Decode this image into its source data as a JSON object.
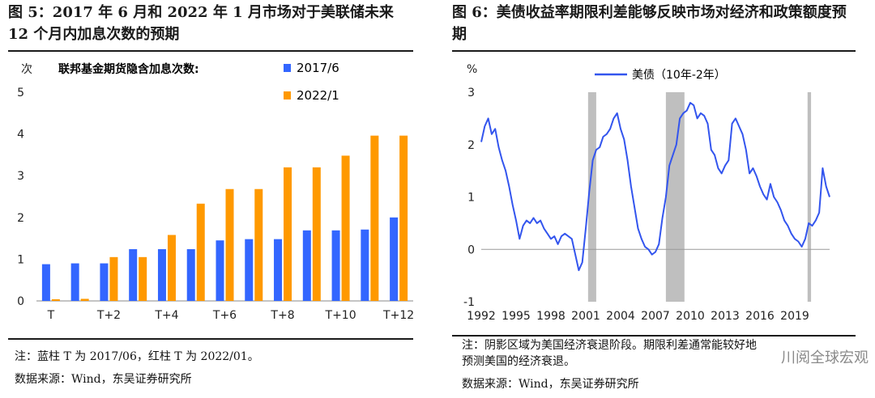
{
  "left": {
    "figure_title": "图 5：2017 年 6 月和 2022 年 1 月市场对于美联储未来 12 个月内加息次数的预期",
    "note": "注：蓝柱 T 为 2017/06，红柱 T 为 2022/01。",
    "source": "数据来源：Wind，东吴证券研究所"
  },
  "right": {
    "figure_title": "图 6：美债收益率期限利差能够反映市场对经济和政策额度预期",
    "note_line1": "注：阴影区域为美国经济衰退阶段。期限利差通常能较好地",
    "note_line2": "预测美国的经济衰退。",
    "source": "数据来源：Wind，东吴证券研究所",
    "watermark": "川阅全球宏观"
  },
  "colors": {
    "blue": "#3366ff",
    "orange": "#ff9900",
    "line_blue": "#3355ee",
    "shade": "#bfbfbf"
  },
  "chart_data": [
    {
      "type": "bar",
      "title": "联邦基金期货隐含加息次数:",
      "ylabel": "次",
      "ylim": [
        0,
        5
      ],
      "yticks": [
        0,
        1,
        2,
        3,
        4,
        5
      ],
      "legend_position": "top-right",
      "categories": [
        "T",
        "",
        "T+2",
        "",
        "T+4",
        "",
        "T+6",
        "",
        "T+8",
        "",
        "T+10",
        "",
        "T+12"
      ],
      "series": [
        {
          "name": "2017/6",
          "color": "#3366ff",
          "values": [
            0.88,
            0.9,
            0.9,
            1.24,
            1.24,
            1.24,
            1.45,
            1.48,
            1.48,
            1.69,
            1.69,
            1.71,
            2.0
          ]
        },
        {
          "name": "2022/1",
          "color": "#ff9900",
          "values": [
            0.04,
            0.05,
            1.05,
            1.05,
            1.58,
            2.33,
            2.68,
            2.68,
            3.2,
            3.2,
            3.48,
            3.96,
            3.96
          ]
        }
      ]
    },
    {
      "type": "line",
      "ylabel": "%",
      "ylim": [
        -1,
        3
      ],
      "yticks": [
        -1,
        0,
        1,
        2,
        3
      ],
      "xlim": [
        1992,
        2022
      ],
      "xticks": [
        1992,
        1995,
        1998,
        2001,
        2004,
        2007,
        2010,
        2013,
        2016,
        2019
      ],
      "legend_position": "top-left",
      "recessions": [
        [
          2001.2,
          2001.9
        ],
        [
          2007.9,
          2009.5
        ],
        [
          2020.1,
          2020.4
        ]
      ],
      "series": [
        {
          "name": "美债（10年-2年）",
          "color": "#3355ee",
          "x": [
            1992.0,
            1992.3,
            1992.6,
            1992.9,
            1993.2,
            1993.5,
            1993.8,
            1994.1,
            1994.4,
            1994.7,
            1995.0,
            1995.3,
            1995.6,
            1995.9,
            1996.2,
            1996.5,
            1996.8,
            1997.1,
            1997.4,
            1997.7,
            1998.0,
            1998.3,
            1998.6,
            1998.9,
            1999.2,
            1999.5,
            1999.8,
            2000.1,
            2000.4,
            2000.7,
            2001.0,
            2001.3,
            2001.6,
            2001.9,
            2002.2,
            2002.5,
            2002.8,
            2003.1,
            2003.4,
            2003.7,
            2004.0,
            2004.3,
            2004.6,
            2004.9,
            2005.2,
            2005.5,
            2005.8,
            2006.1,
            2006.4,
            2006.7,
            2007.0,
            2007.3,
            2007.6,
            2007.9,
            2008.2,
            2008.5,
            2008.8,
            2009.1,
            2009.4,
            2009.7,
            2010.0,
            2010.3,
            2010.6,
            2010.9,
            2011.2,
            2011.5,
            2011.8,
            2012.1,
            2012.4,
            2012.7,
            2013.0,
            2013.3,
            2013.6,
            2013.9,
            2014.2,
            2014.5,
            2014.8,
            2015.1,
            2015.4,
            2015.7,
            2016.0,
            2016.3,
            2016.6,
            2016.9,
            2017.2,
            2017.5,
            2017.8,
            2018.1,
            2018.4,
            2018.7,
            2019.0,
            2019.3,
            2019.6,
            2019.9,
            2020.2,
            2020.5,
            2020.8,
            2021.1,
            2021.4,
            2021.7,
            2022.0
          ],
          "y": [
            2.05,
            2.35,
            2.5,
            2.2,
            2.3,
            1.95,
            1.7,
            1.5,
            1.2,
            0.85,
            0.55,
            0.2,
            0.45,
            0.55,
            0.5,
            0.6,
            0.5,
            0.55,
            0.4,
            0.3,
            0.2,
            0.25,
            0.1,
            0.25,
            0.3,
            0.25,
            0.2,
            -0.1,
            -0.4,
            -0.25,
            0.4,
            1.1,
            1.7,
            1.9,
            1.95,
            2.15,
            2.2,
            2.3,
            2.5,
            2.6,
            2.3,
            2.1,
            1.7,
            1.2,
            0.8,
            0.4,
            0.2,
            0.05,
            0.0,
            -0.1,
            -0.05,
            0.1,
            0.6,
            1.0,
            1.6,
            1.8,
            2.0,
            2.5,
            2.6,
            2.65,
            2.8,
            2.75,
            2.5,
            2.6,
            2.55,
            2.4,
            1.9,
            1.8,
            1.55,
            1.45,
            1.6,
            1.7,
            2.4,
            2.5,
            2.35,
            2.2,
            1.9,
            1.45,
            1.55,
            1.4,
            1.2,
            1.05,
            0.95,
            1.25,
            1.0,
            0.9,
            0.75,
            0.55,
            0.45,
            0.3,
            0.2,
            0.15,
            0.05,
            0.2,
            0.5,
            0.45,
            0.55,
            0.7,
            1.55,
            1.2,
            1.0
          ]
        }
      ]
    }
  ]
}
